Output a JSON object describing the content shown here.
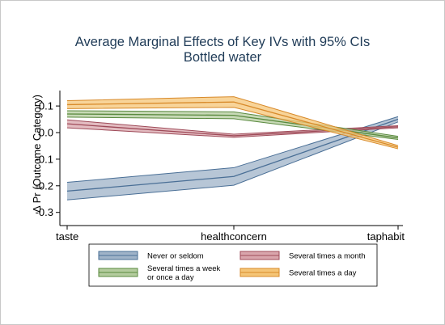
{
  "chart_data": {
    "type": "line",
    "title": "Average Marginal Effects of Key IVs with 95% CIs",
    "subtitle": "Bottled water",
    "xlabel": "",
    "ylabel": "Δ  Pr (Outcome Category)",
    "categories": [
      "taste",
      "healthconcern",
      "taphabit"
    ],
    "ylim": [
      -0.33,
      0.15
    ],
    "yticks": [
      "0.1",
      "0.0",
      "-0.1",
      "-0.2",
      "-0.3"
    ],
    "ytick_values": [
      0.1,
      0.0,
      -0.1,
      -0.2,
      -0.3
    ],
    "grid": false,
    "legend_position": "bottom",
    "series": [
      {
        "name": "Never or seldom",
        "color": "#4a6f96",
        "fill": "#9fb3c8",
        "values": [
          -0.22,
          -0.165,
          0.05
        ],
        "lower": [
          -0.253,
          -0.198,
          0.04
        ],
        "upper": [
          -0.187,
          -0.132,
          0.06
        ]
      },
      {
        "name": "Several times a month",
        "color": "#9e4a58",
        "fill": "#d9a5ac",
        "values": [
          0.033,
          -0.012,
          0.022
        ],
        "lower": [
          0.018,
          -0.018,
          0.018
        ],
        "upper": [
          0.048,
          -0.006,
          0.026
        ]
      },
      {
        "name": "Several times a week or once a day",
        "color": "#5a8a3f",
        "fill": "#b4cc9e",
        "values": [
          0.07,
          0.065,
          -0.02
        ],
        "lower": [
          0.058,
          0.052,
          -0.026
        ],
        "upper": [
          0.082,
          0.078,
          -0.014
        ]
      },
      {
        "name": "Several times a day",
        "color": "#d88a2a",
        "fill": "#f5c577",
        "values": [
          0.105,
          0.115,
          -0.055
        ],
        "lower": [
          0.09,
          0.095,
          -0.061
        ],
        "upper": [
          0.12,
          0.135,
          -0.049
        ]
      }
    ],
    "legend": {
      "items": [
        {
          "label_lines": [
            "Never or seldom"
          ],
          "series": 0
        },
        {
          "label_lines": [
            "Several times a month"
          ],
          "series": 1
        },
        {
          "label_lines": [
            "Several times a week",
            "or once a day"
          ],
          "series": 2
        },
        {
          "label_lines": [
            "Several times a day"
          ],
          "series": 3
        }
      ]
    }
  }
}
